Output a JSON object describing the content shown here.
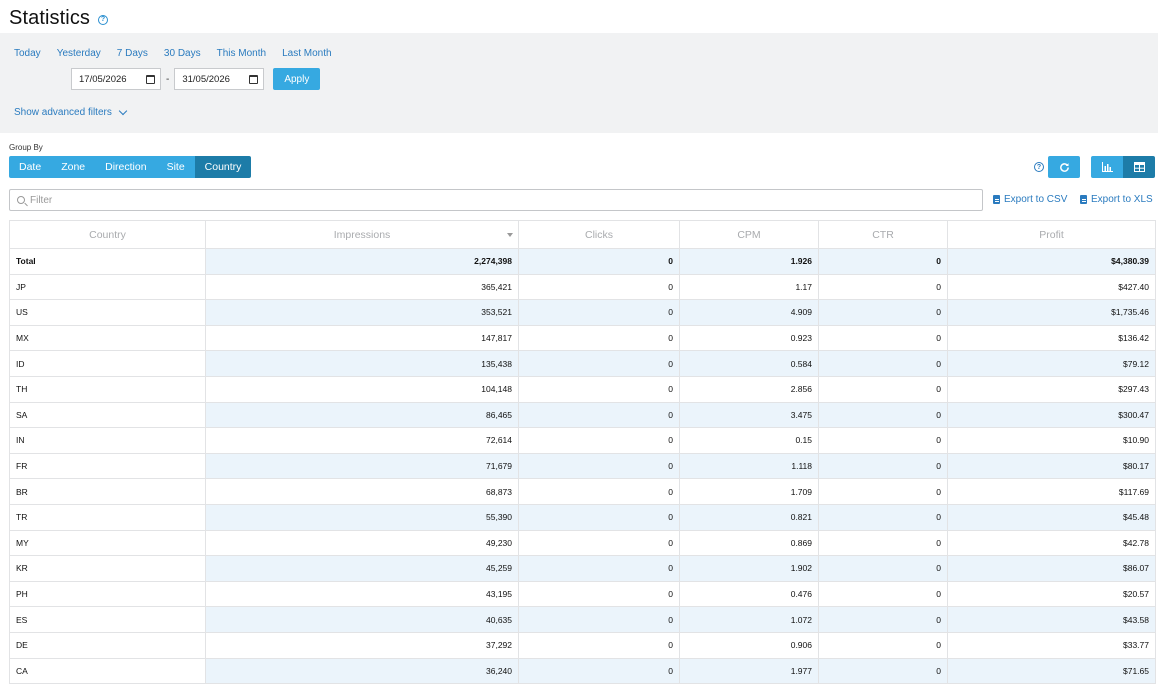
{
  "header": {
    "title": "Statistics",
    "help_icon": "question-circle-icon"
  },
  "filters": {
    "quick_ranges": [
      "Today",
      "Yesterday",
      "7 Days",
      "30 Days",
      "This Month",
      "Last Month"
    ],
    "date_from": "17/05/2026",
    "date_separator": "-",
    "date_to": "31/05/2026",
    "apply_label": "Apply",
    "advanced_label": "Show advanced filters"
  },
  "group_by": {
    "label": "Group By",
    "tabs": [
      "Date",
      "Zone",
      "Direction",
      "Site",
      "Country"
    ],
    "active": "Country"
  },
  "toolbar": {
    "filter_placeholder": "Filter",
    "export_csv": "Export to CSV",
    "export_xls": "Export to XLS"
  },
  "colors": {
    "accent": "#36a9e1",
    "accent_active": "#1d7ca8",
    "link": "#2a7bbf",
    "row_alt": "#ebf4fb"
  },
  "table": {
    "columns": [
      "Country",
      "Impressions",
      "Clicks",
      "CPM",
      "CTR",
      "Profit"
    ],
    "sorted_column": "Impressions",
    "total": [
      "Total",
      "2,274,398",
      "0",
      "1.926",
      "0",
      "$4,380.39"
    ],
    "rows": [
      [
        "JP",
        "365,421",
        "0",
        "1.17",
        "0",
        "$427.40"
      ],
      [
        "US",
        "353,521",
        "0",
        "4.909",
        "0",
        "$1,735.46"
      ],
      [
        "MX",
        "147,817",
        "0",
        "0.923",
        "0",
        "$136.42"
      ],
      [
        "ID",
        "135,438",
        "0",
        "0.584",
        "0",
        "$79.12"
      ],
      [
        "TH",
        "104,148",
        "0",
        "2.856",
        "0",
        "$297.43"
      ],
      [
        "SA",
        "86,465",
        "0",
        "3.475",
        "0",
        "$300.47"
      ],
      [
        "IN",
        "72,614",
        "0",
        "0.15",
        "0",
        "$10.90"
      ],
      [
        "FR",
        "71,679",
        "0",
        "1.118",
        "0",
        "$80.17"
      ],
      [
        "BR",
        "68,873",
        "0",
        "1.709",
        "0",
        "$117.69"
      ],
      [
        "TR",
        "55,390",
        "0",
        "0.821",
        "0",
        "$45.48"
      ],
      [
        "MY",
        "49,230",
        "0",
        "0.869",
        "0",
        "$42.78"
      ],
      [
        "KR",
        "45,259",
        "0",
        "1.902",
        "0",
        "$86.07"
      ],
      [
        "PH",
        "43,195",
        "0",
        "0.476",
        "0",
        "$20.57"
      ],
      [
        "ES",
        "40,635",
        "0",
        "1.072",
        "0",
        "$43.58"
      ],
      [
        "DE",
        "37,292",
        "0",
        "0.906",
        "0",
        "$33.77"
      ],
      [
        "CA",
        "36,240",
        "0",
        "1.977",
        "0",
        "$71.65"
      ]
    ]
  }
}
